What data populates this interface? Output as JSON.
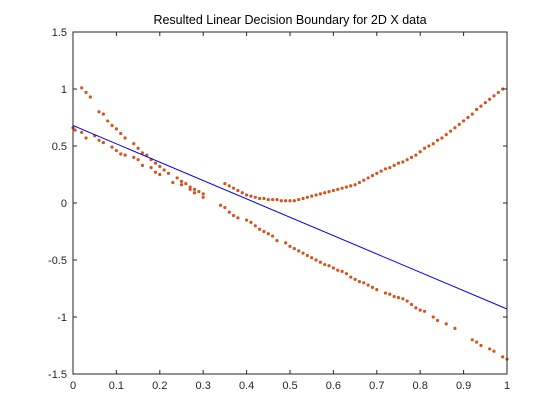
{
  "chart_data": {
    "type": "scatter",
    "title": "Resulted Linear Decision Boundary for 2D X data",
    "xlabel": "",
    "ylabel": "",
    "xlim": [
      0,
      1
    ],
    "ylim": [
      -1.5,
      1.5
    ],
    "xticks": [
      0,
      0.1,
      0.2,
      0.3,
      0.4,
      0.5,
      0.6,
      0.7,
      0.8,
      0.9,
      1
    ],
    "yticks": [
      -1.5,
      -1,
      -0.5,
      0,
      0.5,
      1,
      1.5
    ],
    "xtick_labels": [
      "0",
      "0.1",
      "0.2",
      "0.3",
      "0.4",
      "0.5",
      "0.6",
      "0.7",
      "0.8",
      "0.9",
      "1"
    ],
    "ytick_labels": [
      "-1.5",
      "-1",
      "-0.5",
      "0",
      "0.5",
      "1",
      "1.5"
    ],
    "grid": false,
    "colors": {
      "points": "#D95319",
      "boundary": "#0000FF"
    },
    "boundary": {
      "x": [
        0,
        1
      ],
      "y": [
        0.68,
        -0.93
      ]
    },
    "series": [
      {
        "values": [
          [
            0.0,
            0.66
          ],
          [
            0.005,
            0.64
          ],
          [
            0.02,
            0.62
          ],
          [
            0.03,
            0.57
          ],
          [
            0.05,
            0.59
          ],
          [
            0.06,
            0.55
          ],
          [
            0.07,
            0.53
          ],
          [
            0.09,
            0.49
          ],
          [
            0.1,
            0.46
          ],
          [
            0.11,
            0.43
          ],
          [
            0.12,
            0.42
          ],
          [
            0.14,
            0.4
          ],
          [
            0.15,
            0.38
          ],
          [
            0.16,
            0.33
          ],
          [
            0.18,
            0.31
          ],
          [
            0.19,
            0.27
          ],
          [
            0.2,
            0.25
          ],
          [
            0.23,
            0.18
          ],
          [
            0.25,
            0.16
          ],
          [
            0.27,
            0.12
          ],
          [
            0.28,
            0.09
          ],
          [
            0.3,
            0.05
          ],
          [
            0.34,
            -0.02
          ],
          [
            0.35,
            -0.04
          ],
          [
            0.36,
            -0.08
          ],
          [
            0.37,
            -0.11
          ],
          [
            0.38,
            -0.13
          ],
          [
            0.4,
            -0.15
          ],
          [
            0.41,
            -0.17
          ],
          [
            0.42,
            -0.2
          ],
          [
            0.43,
            -0.23
          ],
          [
            0.44,
            -0.25
          ],
          [
            0.45,
            -0.27
          ],
          [
            0.46,
            -0.29
          ],
          [
            0.47,
            -0.33
          ],
          [
            0.49,
            -0.35
          ],
          [
            0.5,
            -0.38
          ],
          [
            0.51,
            -0.4
          ],
          [
            0.52,
            -0.42
          ],
          [
            0.53,
            -0.44
          ],
          [
            0.54,
            -0.46
          ],
          [
            0.55,
            -0.48
          ],
          [
            0.56,
            -0.5
          ],
          [
            0.57,
            -0.52
          ],
          [
            0.58,
            -0.54
          ],
          [
            0.59,
            -0.55
          ],
          [
            0.6,
            -0.57
          ],
          [
            0.61,
            -0.59
          ],
          [
            0.62,
            -0.6
          ],
          [
            0.63,
            -0.62
          ],
          [
            0.64,
            -0.65
          ],
          [
            0.65,
            -0.67
          ],
          [
            0.66,
            -0.69
          ],
          [
            0.67,
            -0.7
          ],
          [
            0.68,
            -0.72
          ],
          [
            0.69,
            -0.74
          ],
          [
            0.7,
            -0.76
          ],
          [
            0.72,
            -0.79
          ],
          [
            0.73,
            -0.8
          ],
          [
            0.74,
            -0.82
          ],
          [
            0.75,
            -0.83
          ],
          [
            0.76,
            -0.84
          ],
          [
            0.77,
            -0.86
          ],
          [
            0.78,
            -0.89
          ],
          [
            0.79,
            -0.92
          ],
          [
            0.8,
            -0.94
          ],
          [
            0.81,
            -0.95
          ],
          [
            0.83,
            -1.0
          ],
          [
            0.84,
            -1.03
          ],
          [
            0.86,
            -1.06
          ],
          [
            0.88,
            -1.1
          ],
          [
            0.92,
            -1.2
          ],
          [
            0.93,
            -1.22
          ],
          [
            0.94,
            -1.25
          ],
          [
            0.96,
            -1.28
          ],
          [
            0.97,
            -1.3
          ],
          [
            0.99,
            -1.35
          ],
          [
            1.0,
            -1.37
          ],
          [
            0.02,
            1.01
          ],
          [
            0.03,
            0.97
          ],
          [
            0.04,
            0.93
          ],
          [
            0.06,
            0.8
          ],
          [
            0.07,
            0.78
          ],
          [
            0.08,
            0.72
          ],
          [
            0.09,
            0.68
          ],
          [
            0.1,
            0.65
          ],
          [
            0.11,
            0.61
          ],
          [
            0.12,
            0.57
          ],
          [
            0.14,
            0.52
          ],
          [
            0.15,
            0.48
          ],
          [
            0.16,
            0.44
          ],
          [
            0.17,
            0.42
          ],
          [
            0.18,
            0.38
          ],
          [
            0.19,
            0.35
          ],
          [
            0.2,
            0.32
          ],
          [
            0.21,
            0.29
          ],
          [
            0.22,
            0.26
          ],
          [
            0.24,
            0.22
          ],
          [
            0.25,
            0.19
          ],
          [
            0.26,
            0.17
          ],
          [
            0.27,
            0.14
          ],
          [
            0.28,
            0.12
          ],
          [
            0.29,
            0.1
          ],
          [
            0.3,
            0.08
          ],
          [
            0.35,
            0.17
          ],
          [
            0.36,
            0.15
          ],
          [
            0.37,
            0.13
          ],
          [
            0.38,
            0.11
          ],
          [
            0.39,
            0.09
          ],
          [
            0.4,
            0.07
          ],
          [
            0.41,
            0.06
          ],
          [
            0.42,
            0.05
          ],
          [
            0.43,
            0.04
          ],
          [
            0.44,
            0.04
          ],
          [
            0.45,
            0.03
          ],
          [
            0.46,
            0.03
          ],
          [
            0.47,
            0.03
          ],
          [
            0.48,
            0.02
          ],
          [
            0.49,
            0.02
          ],
          [
            0.5,
            0.02
          ],
          [
            0.51,
            0.02
          ],
          [
            0.52,
            0.03
          ],
          [
            0.53,
            0.04
          ],
          [
            0.54,
            0.05
          ],
          [
            0.55,
            0.06
          ],
          [
            0.56,
            0.07
          ],
          [
            0.57,
            0.08
          ],
          [
            0.58,
            0.09
          ],
          [
            0.59,
            0.1
          ],
          [
            0.6,
            0.11
          ],
          [
            0.61,
            0.12
          ],
          [
            0.62,
            0.13
          ],
          [
            0.63,
            0.14
          ],
          [
            0.64,
            0.15
          ],
          [
            0.65,
            0.16
          ],
          [
            0.66,
            0.18
          ],
          [
            0.67,
            0.2
          ],
          [
            0.68,
            0.22
          ],
          [
            0.69,
            0.24
          ],
          [
            0.7,
            0.26
          ],
          [
            0.71,
            0.28
          ],
          [
            0.72,
            0.3
          ],
          [
            0.73,
            0.31
          ],
          [
            0.74,
            0.33
          ],
          [
            0.75,
            0.35
          ],
          [
            0.76,
            0.36
          ],
          [
            0.77,
            0.38
          ],
          [
            0.78,
            0.4
          ],
          [
            0.79,
            0.42
          ],
          [
            0.8,
            0.45
          ],
          [
            0.81,
            0.48
          ],
          [
            0.82,
            0.5
          ],
          [
            0.83,
            0.52
          ],
          [
            0.84,
            0.55
          ],
          [
            0.85,
            0.57
          ],
          [
            0.86,
            0.6
          ],
          [
            0.87,
            0.63
          ],
          [
            0.88,
            0.66
          ],
          [
            0.89,
            0.69
          ],
          [
            0.9,
            0.72
          ],
          [
            0.91,
            0.75
          ],
          [
            0.92,
            0.78
          ],
          [
            0.93,
            0.82
          ],
          [
            0.94,
            0.85
          ],
          [
            0.95,
            0.88
          ],
          [
            0.96,
            0.91
          ],
          [
            0.97,
            0.94
          ],
          [
            0.98,
            0.97
          ],
          [
            0.99,
            1.0
          ]
        ]
      }
    ]
  }
}
